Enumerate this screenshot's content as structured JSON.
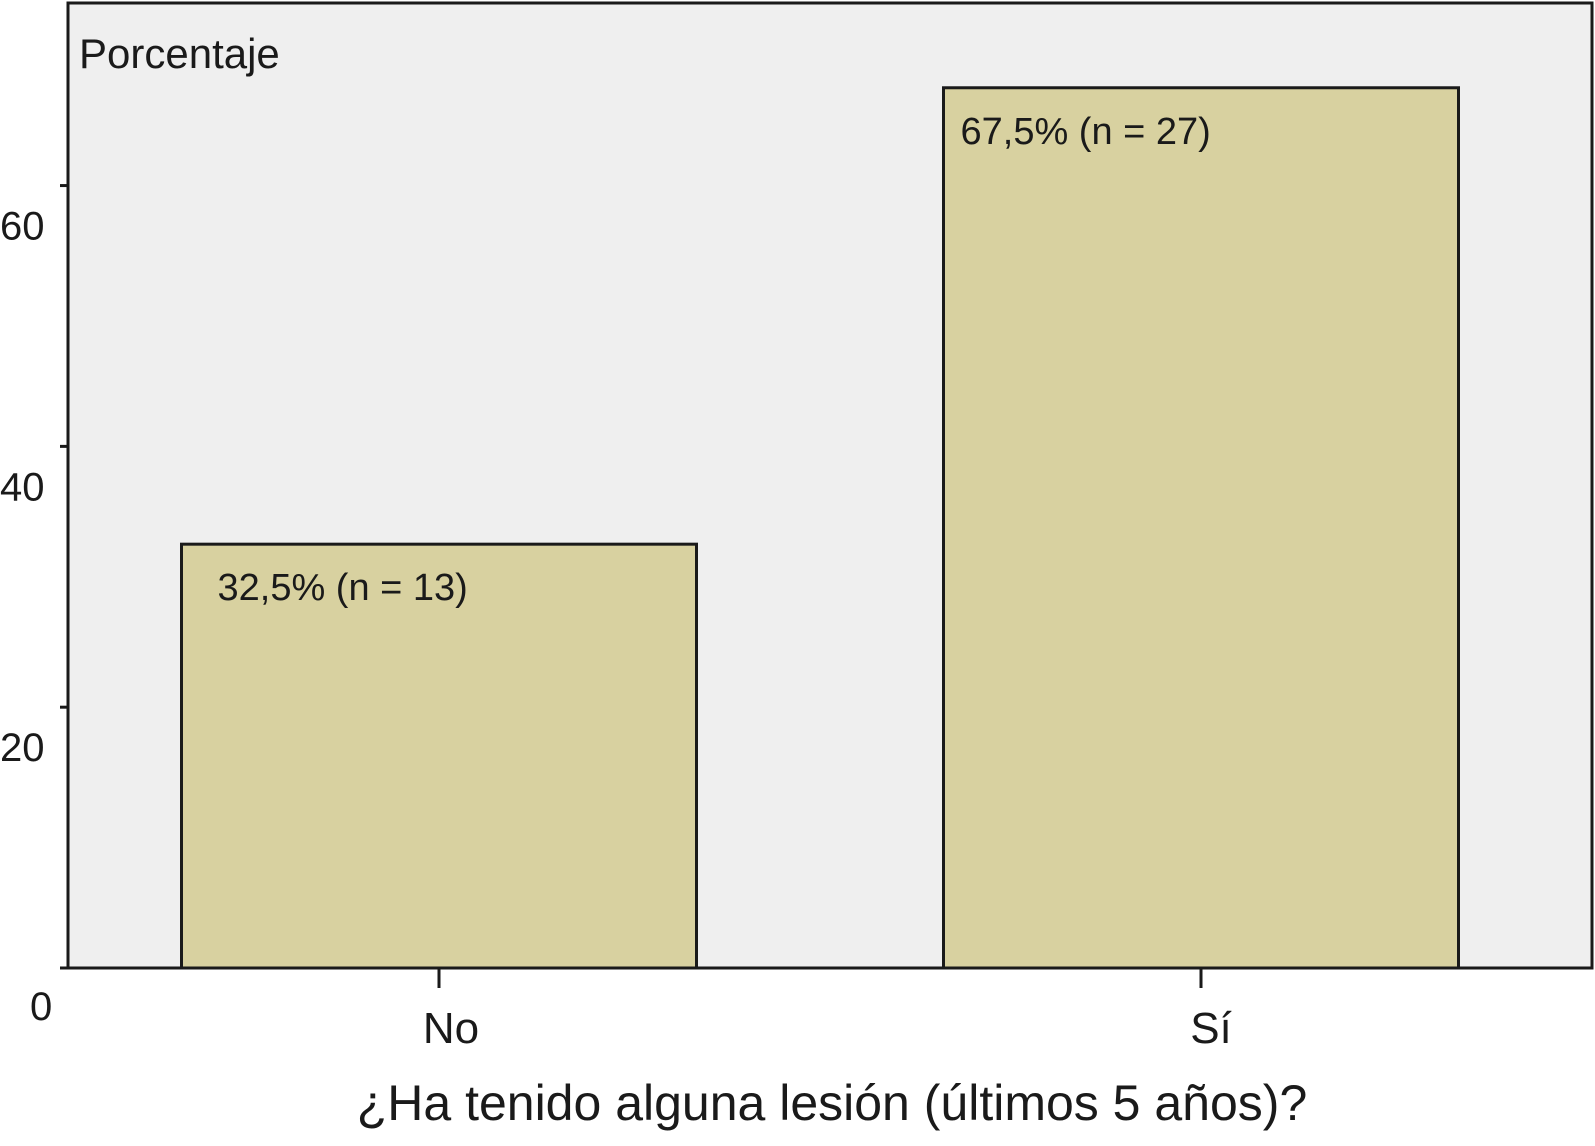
{
  "chart_data": {
    "type": "bar",
    "categories": [
      "No",
      "Sí"
    ],
    "values": [
      32.5,
      67.5
    ],
    "data_labels": [
      "32,5% (n = 13)",
      "67,5% (n = 27)"
    ],
    "title": "",
    "xlabel": "¿Ha tenido alguna lesión (últimos 5 años)?",
    "ylabel": "Porcentaje",
    "ylim": [
      0,
      74
    ],
    "yticks": [
      0,
      20,
      40,
      60
    ],
    "grid": false,
    "colors": {
      "plot_background": "#efefef",
      "bar_fill": "#d8d1a0",
      "bar_stroke": "#1a1a1a",
      "axis": "#1a1a1a"
    }
  }
}
